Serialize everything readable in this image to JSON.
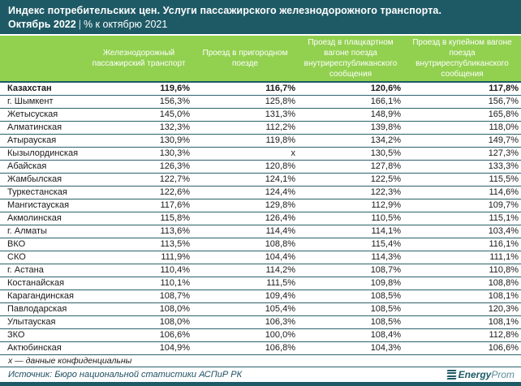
{
  "header": {
    "title": "Индекс потребительских цен. Услуги пассажирского железнодорожного транспорта.",
    "period": "Октябрь 2022",
    "separator": "|",
    "comparison": "% к октябрю 2021"
  },
  "table": {
    "columns": [
      "",
      "Железнодорожный пассажирский транспорт",
      "Проезд в пригородном поезде",
      "Проезд в плацкартном вагоне поезда внутриреспубликанского сообщения",
      "Проезд в купейном вагоне поезда внутриреспубликанского сообщения"
    ],
    "rows": [
      {
        "region": "Казахстан",
        "bold": true,
        "values": [
          "119,6%",
          "116,7%",
          "120,6%",
          "117,8%"
        ]
      },
      {
        "region": "г. Шымкент",
        "bold": false,
        "values": [
          "156,3%",
          "125,8%",
          "166,1%",
          "156,7%"
        ]
      },
      {
        "region": "Жетысуская",
        "bold": false,
        "values": [
          "145,0%",
          "131,3%",
          "148,9%",
          "165,8%"
        ]
      },
      {
        "region": "Алматинская",
        "bold": false,
        "values": [
          "132,3%",
          "112,2%",
          "139,8%",
          "118,0%"
        ]
      },
      {
        "region": "Атырауская",
        "bold": false,
        "values": [
          "130,9%",
          "119,8%",
          "134,2%",
          "149,7%"
        ]
      },
      {
        "region": "Кызылординская",
        "bold": false,
        "values": [
          "130,3%",
          "х",
          "130,5%",
          "127,3%"
        ]
      },
      {
        "region": "Абайская",
        "bold": false,
        "values": [
          "126,3%",
          "120,8%",
          "127,8%",
          "133,3%"
        ]
      },
      {
        "region": "Жамбылская",
        "bold": false,
        "values": [
          "122,7%",
          "124,1%",
          "122,5%",
          "115,5%"
        ]
      },
      {
        "region": "Туркестанская",
        "bold": false,
        "values": [
          "122,6%",
          "124,4%",
          "122,3%",
          "114,6%"
        ]
      },
      {
        "region": "Мангистауская",
        "bold": false,
        "values": [
          "117,6%",
          "129,8%",
          "112,9%",
          "109,7%"
        ]
      },
      {
        "region": "Акмолинская",
        "bold": false,
        "values": [
          "115,8%",
          "126,4%",
          "110,5%",
          "115,1%"
        ]
      },
      {
        "region": "г. Алматы",
        "bold": false,
        "values": [
          "113,6%",
          "114,4%",
          "114,1%",
          "103,4%"
        ]
      },
      {
        "region": "ВКО",
        "bold": false,
        "values": [
          "113,5%",
          "108,8%",
          "115,4%",
          "116,1%"
        ]
      },
      {
        "region": "СКО",
        "bold": false,
        "values": [
          "111,9%",
          "104,4%",
          "114,3%",
          "111,1%"
        ]
      },
      {
        "region": "г. Астана",
        "bold": false,
        "values": [
          "110,4%",
          "114,2%",
          "108,7%",
          "110,8%"
        ]
      },
      {
        "region": "Костанайская",
        "bold": false,
        "values": [
          "110,1%",
          "111,5%",
          "109,8%",
          "108,8%"
        ]
      },
      {
        "region": "Карагандинская",
        "bold": false,
        "values": [
          "108,7%",
          "109,4%",
          "108,5%",
          "108,1%"
        ]
      },
      {
        "region": "Павлодарская",
        "bold": false,
        "values": [
          "108,0%",
          "105,4%",
          "108,5%",
          "120,3%"
        ]
      },
      {
        "region": "Улытауская",
        "bold": false,
        "values": [
          "108,0%",
          "106,3%",
          "108,5%",
          "108,1%"
        ]
      },
      {
        "region": "ЗКО",
        "bold": false,
        "values": [
          "106,6%",
          "100,0%",
          "108,4%",
          "112,8%"
        ]
      },
      {
        "region": "Актюбинская",
        "bold": false,
        "values": [
          "104,9%",
          "106,8%",
          "104,3%",
          "106,6%"
        ]
      }
    ]
  },
  "footnote": "х — данные конфиденциальны",
  "source": "Источник: Бюро национальной статистики АСПиР РК",
  "logo": {
    "bold": "Energy",
    "light": "Prom"
  },
  "colors": {
    "teal": "#1e5a66",
    "green": "#92d050",
    "row_line": "#2a616c",
    "text": "#1a1a1a",
    "source_text": "#1d4d60"
  },
  "chart_data": {
    "type": "table",
    "title": "Индекс потребительских цен. Услуги пассажирского железнодорожного транспорта.",
    "subtitle": "Октябрь 2022 | % к октябрю 2021",
    "columns": [
      "Железнодорожный пассажирский транспорт",
      "Проезд в пригородном поезде",
      "Проезд в плацкартном вагоне поезда внутриреспубликанского сообщения",
      "Проезд в купейном вагоне поезда внутриреспубликанского сообщения"
    ],
    "unit": "%",
    "categories": [
      "Казахстан",
      "г. Шымкент",
      "Жетысуская",
      "Алматинская",
      "Атырауская",
      "Кызылординская",
      "Абайская",
      "Жамбылская",
      "Туркестанская",
      "Мангистауская",
      "Акмолинская",
      "г. Алматы",
      "ВКО",
      "СКО",
      "г. Астана",
      "Костанайская",
      "Карагандинская",
      "Павлодарская",
      "Улытауская",
      "ЗКО",
      "Актюбинская"
    ],
    "series": [
      {
        "name": "Железнодорожный пассажирский транспорт",
        "values": [
          119.6,
          156.3,
          145.0,
          132.3,
          130.9,
          130.3,
          126.3,
          122.7,
          122.6,
          117.6,
          115.8,
          113.6,
          113.5,
          111.9,
          110.4,
          110.1,
          108.7,
          108.0,
          108.0,
          106.6,
          104.9
        ]
      },
      {
        "name": "Проезд в пригородном поезде",
        "values": [
          116.7,
          125.8,
          131.3,
          112.2,
          119.8,
          "x",
          120.8,
          124.1,
          124.4,
          129.8,
          126.4,
          114.4,
          108.8,
          104.4,
          114.2,
          111.5,
          109.4,
          105.4,
          106.3,
          100.0,
          106.8
        ]
      },
      {
        "name": "Проезд в плацкартном вагоне поезда внутриреспубликанского сообщения",
        "values": [
          120.6,
          166.1,
          148.9,
          139.8,
          134.2,
          130.5,
          127.8,
          122.5,
          122.3,
          112.9,
          110.5,
          114.1,
          115.4,
          114.3,
          108.7,
          109.8,
          108.5,
          108.5,
          108.5,
          108.4,
          104.3
        ]
      },
      {
        "name": "Проезд в купейном вагоне поезда внутриреспубликанского сообщения",
        "values": [
          117.8,
          156.7,
          165.8,
          118.0,
          149.7,
          127.3,
          133.3,
          115.5,
          114.6,
          109.7,
          115.1,
          103.4,
          116.1,
          111.1,
          110.8,
          108.8,
          108.1,
          120.3,
          108.1,
          112.8,
          106.6
        ]
      }
    ],
    "notes": [
      "х — данные конфиденциальны",
      "Источник: Бюро национальной статистики АСПиР РК"
    ]
  }
}
